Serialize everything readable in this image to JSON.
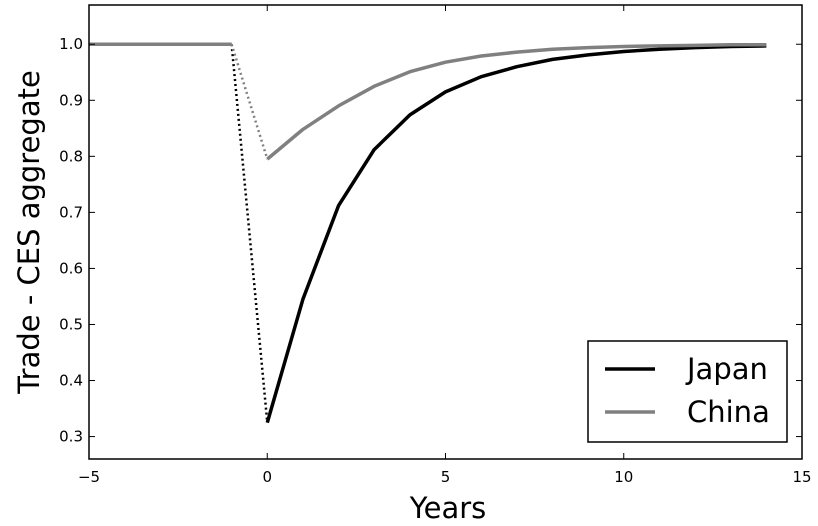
{
  "chart_data": {
    "type": "line",
    "title": "",
    "xlabel": "Years",
    "ylabel": "Trade - CES aggregate",
    "xlim": [
      -5,
      15
    ],
    "ylim": [
      0.26,
      1.07
    ],
    "xticks": [
      -5,
      0,
      5,
      10,
      15
    ],
    "xtick_labels": [
      "−5",
      "0",
      "5",
      "10",
      "15"
    ],
    "yticks": [
      0.3,
      0.4,
      0.5,
      0.6,
      0.7,
      0.8,
      0.9,
      1.0
    ],
    "ytick_labels": [
      "0.3",
      "0.4",
      "0.5",
      "0.6",
      "0.7",
      "0.8",
      "0.9",
      "1.0"
    ],
    "grid": false,
    "legend_position": "lower-right",
    "series": [
      {
        "name": "Japan",
        "color": "#000000",
        "pre": {
          "x": [
            -5,
            -4,
            -3,
            -2,
            -1
          ],
          "y": [
            1.0,
            1.0,
            1.0,
            1.0,
            1.0
          ]
        },
        "drop": {
          "x": [
            -1,
            0
          ],
          "y": [
            1.0,
            0.325
          ],
          "style": "dotted"
        },
        "post": {
          "x": [
            0,
            1,
            2,
            3,
            4,
            5,
            6,
            7,
            8,
            9,
            10,
            11,
            12,
            13,
            14
          ],
          "y": [
            0.325,
            0.545,
            0.712,
            0.812,
            0.874,
            0.915,
            0.942,
            0.96,
            0.973,
            0.981,
            0.987,
            0.991,
            0.994,
            0.996,
            0.997
          ]
        }
      },
      {
        "name": "China",
        "color": "#808080",
        "pre": {
          "x": [
            -5,
            -4,
            -3,
            -2,
            -1
          ],
          "y": [
            1.0,
            1.0,
            1.0,
            1.0,
            1.0
          ]
        },
        "drop": {
          "x": [
            -1,
            0
          ],
          "y": [
            1.0,
            0.795
          ],
          "style": "dotted"
        },
        "post": {
          "x": [
            0,
            1,
            2,
            3,
            4,
            5,
            6,
            7,
            8,
            9,
            10,
            11,
            12,
            13,
            14
          ],
          "y": [
            0.795,
            0.848,
            0.89,
            0.925,
            0.951,
            0.968,
            0.979,
            0.986,
            0.991,
            0.994,
            0.996,
            0.997,
            0.998,
            0.999,
            0.999
          ]
        }
      }
    ]
  }
}
